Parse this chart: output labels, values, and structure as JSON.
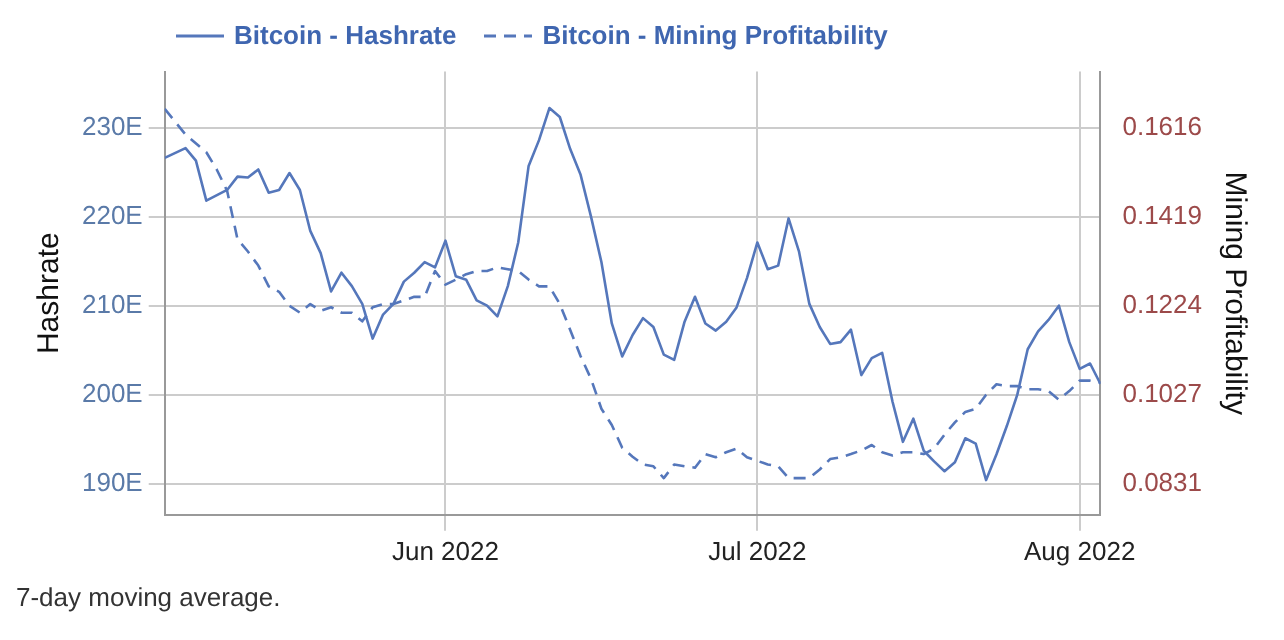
{
  "chart_data": {
    "type": "line",
    "ylabel": "Hashrate",
    "y2label": "Mining Profitability",
    "annotations": [
      "7-day moving average."
    ],
    "xlim": [
      "2022-05-05",
      "2022-08-03"
    ],
    "xticks": [
      {
        "value": "2022-06-01",
        "label": "Jun 2022"
      },
      {
        "value": "2022-07-01",
        "label": "Jul 2022"
      },
      {
        "value": "2022-08-01",
        "label": "Aug 2022"
      }
    ],
    "ylim": [
      186.5,
      236.3
    ],
    "yticks": [
      {
        "value": 190,
        "label": "190E"
      },
      {
        "value": 200,
        "label": "200E"
      },
      {
        "value": 210,
        "label": "210E"
      },
      {
        "value": 220,
        "label": "220E"
      },
      {
        "value": 230,
        "label": "230E"
      }
    ],
    "y2lim": [
      0.0762,
      0.174
    ],
    "y2ticks": [
      0.0831,
      0.1027,
      0.1224,
      0.1419,
      0.1616
    ],
    "grid": true,
    "legend": "top left",
    "marker": "none",
    "series": [
      {
        "name": "Bitcoin - Hashrate",
        "color": "#5577bb",
        "line_style": "solid",
        "axis": "y",
        "x": [
          "2022-05-05",
          "2022-05-07",
          "2022-05-08",
          "2022-05-09",
          "2022-05-11",
          "2022-05-12",
          "2022-05-13",
          "2022-05-14",
          "2022-05-15",
          "2022-05-16",
          "2022-05-17",
          "2022-05-18",
          "2022-05-19",
          "2022-05-20",
          "2022-05-21",
          "2022-05-22",
          "2022-05-23",
          "2022-05-24",
          "2022-05-25",
          "2022-05-26",
          "2022-05-27",
          "2022-05-28",
          "2022-05-29",
          "2022-05-30",
          "2022-05-31",
          "2022-06-01",
          "2022-06-02",
          "2022-06-03",
          "2022-06-04",
          "2022-06-05",
          "2022-06-06",
          "2022-06-07",
          "2022-06-08",
          "2022-06-09",
          "2022-06-10",
          "2022-06-11",
          "2022-06-12",
          "2022-06-13",
          "2022-06-14",
          "2022-06-15",
          "2022-06-16",
          "2022-06-17",
          "2022-06-18",
          "2022-06-19",
          "2022-06-20",
          "2022-06-21",
          "2022-06-22",
          "2022-06-23",
          "2022-06-24",
          "2022-06-25",
          "2022-06-26",
          "2022-06-27",
          "2022-06-28",
          "2022-06-29",
          "2022-06-30",
          "2022-07-01",
          "2022-07-02",
          "2022-07-03",
          "2022-07-04",
          "2022-07-05",
          "2022-07-06",
          "2022-07-07",
          "2022-07-08",
          "2022-07-09",
          "2022-07-10",
          "2022-07-11",
          "2022-07-12",
          "2022-07-13",
          "2022-07-14",
          "2022-07-15",
          "2022-07-16",
          "2022-07-17",
          "2022-07-18",
          "2022-07-19",
          "2022-07-20",
          "2022-07-21",
          "2022-07-22",
          "2022-07-23",
          "2022-07-24",
          "2022-07-25",
          "2022-07-26",
          "2022-07-27",
          "2022-07-28",
          "2022-07-29",
          "2022-07-30",
          "2022-07-31",
          "2022-08-01",
          "2022-08-02",
          "2022-08-03"
        ],
        "values": [
          226.6,
          227.7,
          226.3,
          221.8,
          223,
          224.5,
          224.4,
          225.3,
          222.7,
          223,
          224.9,
          223,
          218.4,
          215.9,
          211.6,
          213.7,
          212.2,
          210.2,
          206.3,
          209,
          210.2,
          212.7,
          213.7,
          214.9,
          214.3,
          217.3,
          213.3,
          212.9,
          210.6,
          210,
          208.8,
          212.2,
          217.1,
          225.7,
          228.6,
          232.2,
          231.2,
          227.6,
          224.7,
          220,
          214.9,
          208,
          204.3,
          206.7,
          208.6,
          207.6,
          204.5,
          203.9,
          208.2,
          211,
          208,
          207.2,
          208.2,
          209.8,
          213.1,
          217.1,
          214.1,
          214.5,
          219.8,
          216.1,
          210.2,
          207.6,
          205.7,
          205.9,
          207.3,
          202.2,
          204.1,
          204.7,
          199.2,
          194.7,
          197.3,
          193.7,
          192.5,
          191.4,
          192.4,
          195.1,
          194.5,
          190.4,
          193.3,
          196.5,
          200,
          205.1,
          207.1,
          208.4,
          210,
          205.9,
          202.9,
          203.5,
          201.2
        ]
      },
      {
        "name": "Bitcoin - Mining Profitability",
        "color": "#5577bb",
        "line_style": "dashed",
        "axis": "y2",
        "x": [
          "2022-05-05",
          "2022-05-07",
          "2022-05-09",
          "2022-05-10",
          "2022-05-11",
          "2022-05-12",
          "2022-05-13",
          "2022-05-14",
          "2022-05-15",
          "2022-05-16",
          "2022-05-17",
          "2022-05-18",
          "2022-05-19",
          "2022-05-20",
          "2022-05-21",
          "2022-05-22",
          "2022-05-23",
          "2022-05-24",
          "2022-05-25",
          "2022-05-26",
          "2022-05-27",
          "2022-05-28",
          "2022-05-29",
          "2022-05-30",
          "2022-05-31",
          "2022-06-01",
          "2022-06-02",
          "2022-06-03",
          "2022-06-04",
          "2022-06-05",
          "2022-06-06",
          "2022-06-07",
          "2022-06-08",
          "2022-06-09",
          "2022-06-10",
          "2022-06-11",
          "2022-06-12",
          "2022-06-13",
          "2022-06-14",
          "2022-06-15",
          "2022-06-16",
          "2022-06-17",
          "2022-06-18",
          "2022-06-19",
          "2022-06-20",
          "2022-06-21",
          "2022-06-22",
          "2022-06-23",
          "2022-06-24",
          "2022-06-25",
          "2022-06-26",
          "2022-06-27",
          "2022-06-28",
          "2022-06-29",
          "2022-06-30",
          "2022-07-01",
          "2022-07-02",
          "2022-07-03",
          "2022-07-04",
          "2022-07-05",
          "2022-07-06",
          "2022-07-07",
          "2022-07-08",
          "2022-07-09",
          "2022-07-10",
          "2022-07-11",
          "2022-07-12",
          "2022-07-13",
          "2022-07-14",
          "2022-07-15",
          "2022-07-16",
          "2022-07-17",
          "2022-07-18",
          "2022-07-19",
          "2022-07-20",
          "2022-07-21",
          "2022-07-22",
          "2022-07-23",
          "2022-07-24",
          "2022-07-25",
          "2022-07-26",
          "2022-07-27",
          "2022-07-28",
          "2022-07-29",
          "2022-07-30",
          "2022-07-31",
          "2022-08-01",
          "2022-08-02",
          "2022-08-03"
        ],
        "values": [
          0.1658,
          0.1601,
          0.1562,
          0.1524,
          0.1477,
          0.137,
          0.1343,
          0.1312,
          0.1266,
          0.1254,
          0.1223,
          0.1208,
          0.1227,
          0.1212,
          0.122,
          0.1208,
          0.1208,
          0.1189,
          0.122,
          0.1227,
          0.1227,
          0.1235,
          0.1243,
          0.1243,
          0.13,
          0.127,
          0.1281,
          0.1293,
          0.13,
          0.13,
          0.1308,
          0.1304,
          0.13,
          0.1281,
          0.1266,
          0.1266,
          0.1227,
          0.117,
          0.1112,
          0.1062,
          0.0996,
          0.096,
          0.091,
          0.089,
          0.0873,
          0.0869,
          0.0843,
          0.0873,
          0.0869,
          0.0866,
          0.0896,
          0.0889,
          0.09,
          0.0908,
          0.0889,
          0.0881,
          0.0873,
          0.0869,
          0.0843,
          0.0843,
          0.0843,
          0.0862,
          0.0885,
          0.0889,
          0.0896,
          0.0904,
          0.0916,
          0.09,
          0.0893,
          0.09,
          0.09,
          0.0896,
          0.0908,
          0.0939,
          0.0966,
          0.0989,
          0.0996,
          0.1027,
          0.105,
          0.1046,
          0.1046,
          0.1039,
          0.1039,
          0.1035,
          0.1016,
          0.1035,
          0.1058,
          0.1058,
          0.1054
        ]
      }
    ]
  }
}
